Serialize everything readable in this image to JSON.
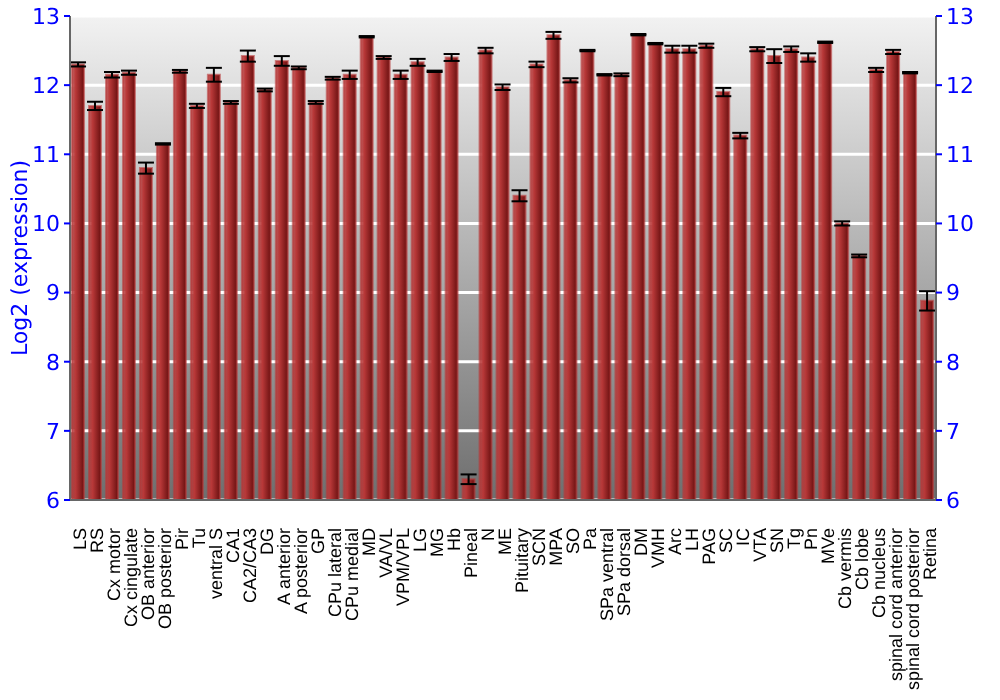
{
  "chart_data": {
    "type": "bar",
    "ylabel": "Log2 (expression)",
    "categories": [
      "LS",
      "RS",
      "Cx motor",
      "Cx cingulate",
      "OB anterior",
      "OB posterior",
      "Pir",
      "Tu",
      "ventral S",
      "CA1",
      "CA2/CA3",
      "DG",
      "A anterior",
      "A posterior",
      "GP",
      "CPu lateral",
      "CPu medial",
      "MD",
      "VA/VL",
      "VPM/VPL",
      "LG",
      "MG",
      "Hb",
      "Pineal",
      "N",
      "ME",
      "Pituitary",
      "SCN",
      "MPA",
      "SO",
      "Pa",
      "SPa ventral",
      "SPa dorsal",
      "DM",
      "VMH",
      "Arc",
      "LH",
      "PAG",
      "SC",
      "IC",
      "VTA",
      "SN",
      "Tg",
      "Pn",
      "MVe",
      "Cb vermis",
      "Cb lobe",
      "Cb nucleus",
      "spinal cord anterior",
      "spinal cord posterior",
      "Retina"
    ],
    "values": [
      12.3,
      11.7,
      12.15,
      12.18,
      10.8,
      11.15,
      12.2,
      11.7,
      12.15,
      11.75,
      12.42,
      11.93,
      12.35,
      12.25,
      11.75,
      12.1,
      12.15,
      12.7,
      12.4,
      12.15,
      12.33,
      12.2,
      12.4,
      6.3,
      12.5,
      11.97,
      10.4,
      12.3,
      12.72,
      12.07,
      12.5,
      12.15,
      12.15,
      12.73,
      12.6,
      12.52,
      12.52,
      12.57,
      11.9,
      11.27,
      12.52,
      12.42,
      12.52,
      12.4,
      12.62,
      10.0,
      9.53,
      12.22,
      12.48,
      12.18,
      8.88
    ],
    "errors": [
      0.03,
      0.06,
      0.04,
      0.03,
      0.08,
      0.01,
      0.02,
      0.03,
      0.1,
      0.02,
      0.08,
      0.02,
      0.07,
      0.02,
      0.02,
      0.02,
      0.06,
      0.01,
      0.02,
      0.06,
      0.05,
      0.01,
      0.05,
      0.07,
      0.04,
      0.04,
      0.08,
      0.04,
      0.05,
      0.03,
      0.01,
      0.01,
      0.02,
      0.01,
      0.01,
      0.05,
      0.05,
      0.03,
      0.06,
      0.04,
      0.03,
      0.1,
      0.04,
      0.06,
      0.01,
      0.03,
      0.02,
      0.03,
      0.03,
      0.01,
      0.14
    ],
    "color": "#b83838",
    "ylim": [
      6,
      13
    ],
    "yticks": [
      6,
      7,
      8,
      9,
      10,
      11,
      12,
      13
    ],
    "y2lim": [
      6,
      13
    ],
    "y2ticks": [
      6,
      7,
      8,
      9,
      10,
      11,
      12,
      13
    ],
    "grid": "y"
  }
}
